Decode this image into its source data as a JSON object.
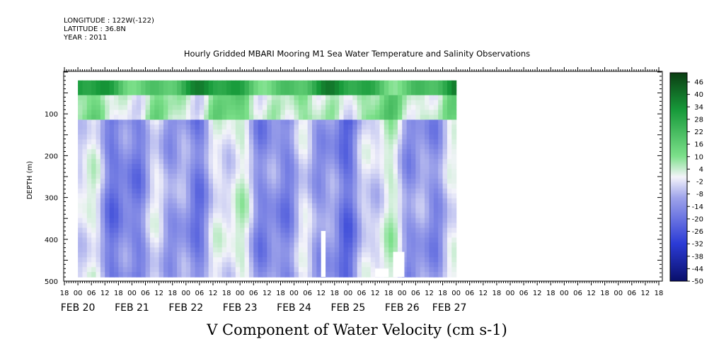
{
  "header": {
    "longitude": "LONGITUDE : 122W(-122)",
    "latitude": "LATITUDE : 36.8N",
    "year": "YEAR : 2011"
  },
  "chart_data": {
    "type": "heatmap",
    "title": "Hourly Gridded MBARI Mooring M1 Sea Water Temperature and Salinity Observations",
    "xlabel": "V Component of Water Velocity (cm s-1)",
    "ylabel": "DEPTH (m)",
    "y_axis": {
      "ylim": [
        500,
        0
      ],
      "ticks": [
        100,
        200,
        300,
        400,
        500
      ],
      "inverted": true
    },
    "x_axis": {
      "start_hour": "18",
      "hour_ticks": [
        "18",
        "00",
        "06",
        "12",
        "18",
        "00",
        "06",
        "12",
        "18",
        "00",
        "06",
        "12",
        "18",
        "00",
        "06",
        "12",
        "18",
        "00",
        "06",
        "12",
        "18",
        "00",
        "06",
        "12",
        "18",
        "00",
        "06",
        "12",
        "18",
        "00",
        "06",
        "12",
        "18",
        "00",
        "06",
        "12",
        "18",
        "00",
        "06",
        "12",
        "18",
        "00",
        "06",
        "12",
        "18"
      ],
      "date_labels": [
        "FEB 20",
        "FEB 21",
        "FEB 22",
        "FEB 23",
        "FEB 24",
        "FEB 25",
        "FEB 26",
        "FEB 27"
      ],
      "date_label_hour_index": [
        1,
        5,
        9,
        13,
        17,
        21,
        25,
        28.5
      ]
    },
    "colorbar": {
      "min": -50,
      "max": 50,
      "labels": [
        "46",
        "40",
        "34",
        "28",
        "22",
        "16",
        "10",
        "4",
        "-2",
        "-8",
        "-14",
        "-20",
        "-26",
        "-32",
        "-38",
        "-44",
        "-50"
      ]
    },
    "summary": {
      "surface_layer": "strong positive V (green, up to ~40 cm/s) in upper ~60 m",
      "deep_layer": "mostly weak negative V (blue/purple, -5 to -20 cm/s) with green patches"
    },
    "data_gaps": [
      {
        "x_hour_from": 114,
        "x_hour_to": 116,
        "depth_from": 380,
        "depth_to": 490
      },
      {
        "x_hour_from": 138,
        "x_hour_to": 144,
        "depth_from": 470,
        "depth_to": 490
      },
      {
        "x_hour_from": 146,
        "x_hour_to": 151,
        "depth_from": 430,
        "depth_to": 490
      }
    ],
    "grid": false,
    "colors": {
      "positive": "#00c800",
      "negative": "#0000c0",
      "zero": "#ffffff"
    }
  }
}
